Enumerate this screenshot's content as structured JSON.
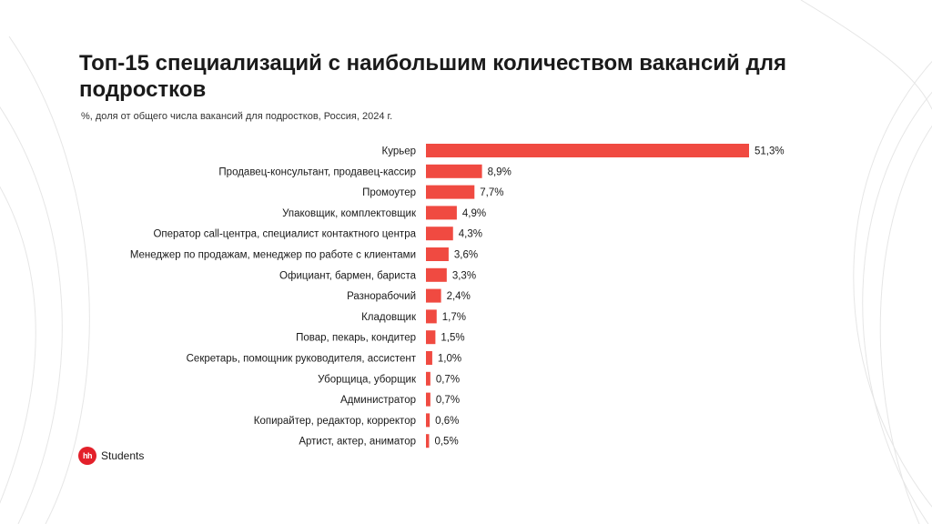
{
  "header": {
    "title": "Топ-15 специализаций с наибольшим количеством вакансий для подростков",
    "subtitle": "%, доля от общего числа вакансий для подростков, Россия, 2024 г."
  },
  "logo": {
    "badge": "hh",
    "text": "Students"
  },
  "colors": {
    "bar": "#f04a41",
    "text": "#1a1a1a",
    "deco_lines": "#e3e3e3"
  },
  "chart_data": {
    "type": "bar",
    "orientation": "horizontal",
    "categories": [
      "Курьер",
      "Продавец-консультант, продавец-кассир",
      "Промоутер",
      "Упаковщик, комплектовщик",
      "Оператор call-центра, специалист контактного центра",
      "Менеджер по продажам, менеджер по работе с клиентами",
      "Официант, бармен, бариста",
      "Разнорабочий",
      "Кладовщик",
      "Повар, пекарь, кондитер",
      "Секретарь, помощник руководителя, ассистент",
      "Уборщица, уборщик",
      "Администратор",
      "Копирайтер, редактор, корректор",
      "Артист, актер, аниматор"
    ],
    "values": [
      51.3,
      8.9,
      7.7,
      4.9,
      4.3,
      3.6,
      3.3,
      2.4,
      1.7,
      1.5,
      1.0,
      0.7,
      0.7,
      0.6,
      0.5
    ],
    "value_labels": [
      "51,3%",
      "8,9%",
      "7,7%",
      "4,9%",
      "4,3%",
      "3,6%",
      "3,3%",
      "2,4%",
      "1,7%",
      "1,5%",
      "1,0%",
      "0,7%",
      "0,7%",
      "0,6%",
      "0,5%"
    ],
    "unit": "%",
    "grid": false,
    "legend": "none"
  }
}
